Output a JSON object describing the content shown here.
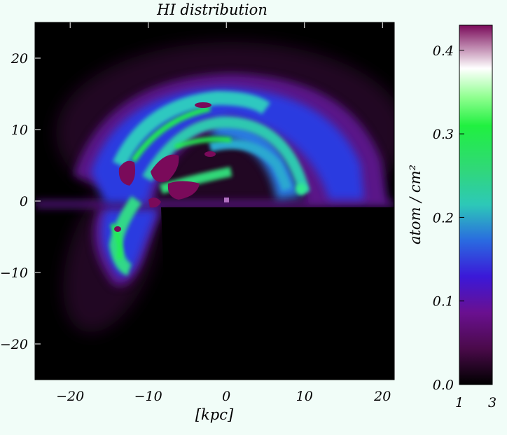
{
  "chart_data": {
    "type": "heatmap",
    "title": "HI distribution",
    "xlabel": "[kpc]",
    "ylabel": "",
    "xlim": [
      -24.5,
      21.5
    ],
    "ylim": [
      -25,
      25
    ],
    "x_ticks": [
      "−20",
      "−10",
      "0",
      "10",
      "20"
    ],
    "x_tick_values": [
      -20,
      -10,
      0,
      10,
      20
    ],
    "y_ticks": [
      "20",
      "10",
      "0",
      "−10",
      "−20"
    ],
    "y_tick_values": [
      20,
      10,
      0,
      -10,
      -20
    ],
    "colorbar": {
      "label": "atom / cm²",
      "range": [
        0.0,
        0.43
      ],
      "ticks": [
        "0.4",
        "0.3",
        "0.2",
        "0.1",
        "0.0"
      ],
      "tick_values": [
        0.4,
        0.3,
        0.2,
        0.1,
        0.0
      ],
      "bottom_labels": [
        "1",
        "3"
      ],
      "colormap": [
        "#000000",
        "#4a0a4a",
        "#6a1090",
        "#3b18d8",
        "#2a6ae0",
        "#2dc8b8",
        "#30d878",
        "#20f040",
        "#90ff90",
        "#ffffff",
        "#7a0a5a"
      ]
    },
    "colors": {
      "background": "#f1fdf8",
      "plot_background": "#000000",
      "high_density": "#7a0a5a"
    }
  }
}
